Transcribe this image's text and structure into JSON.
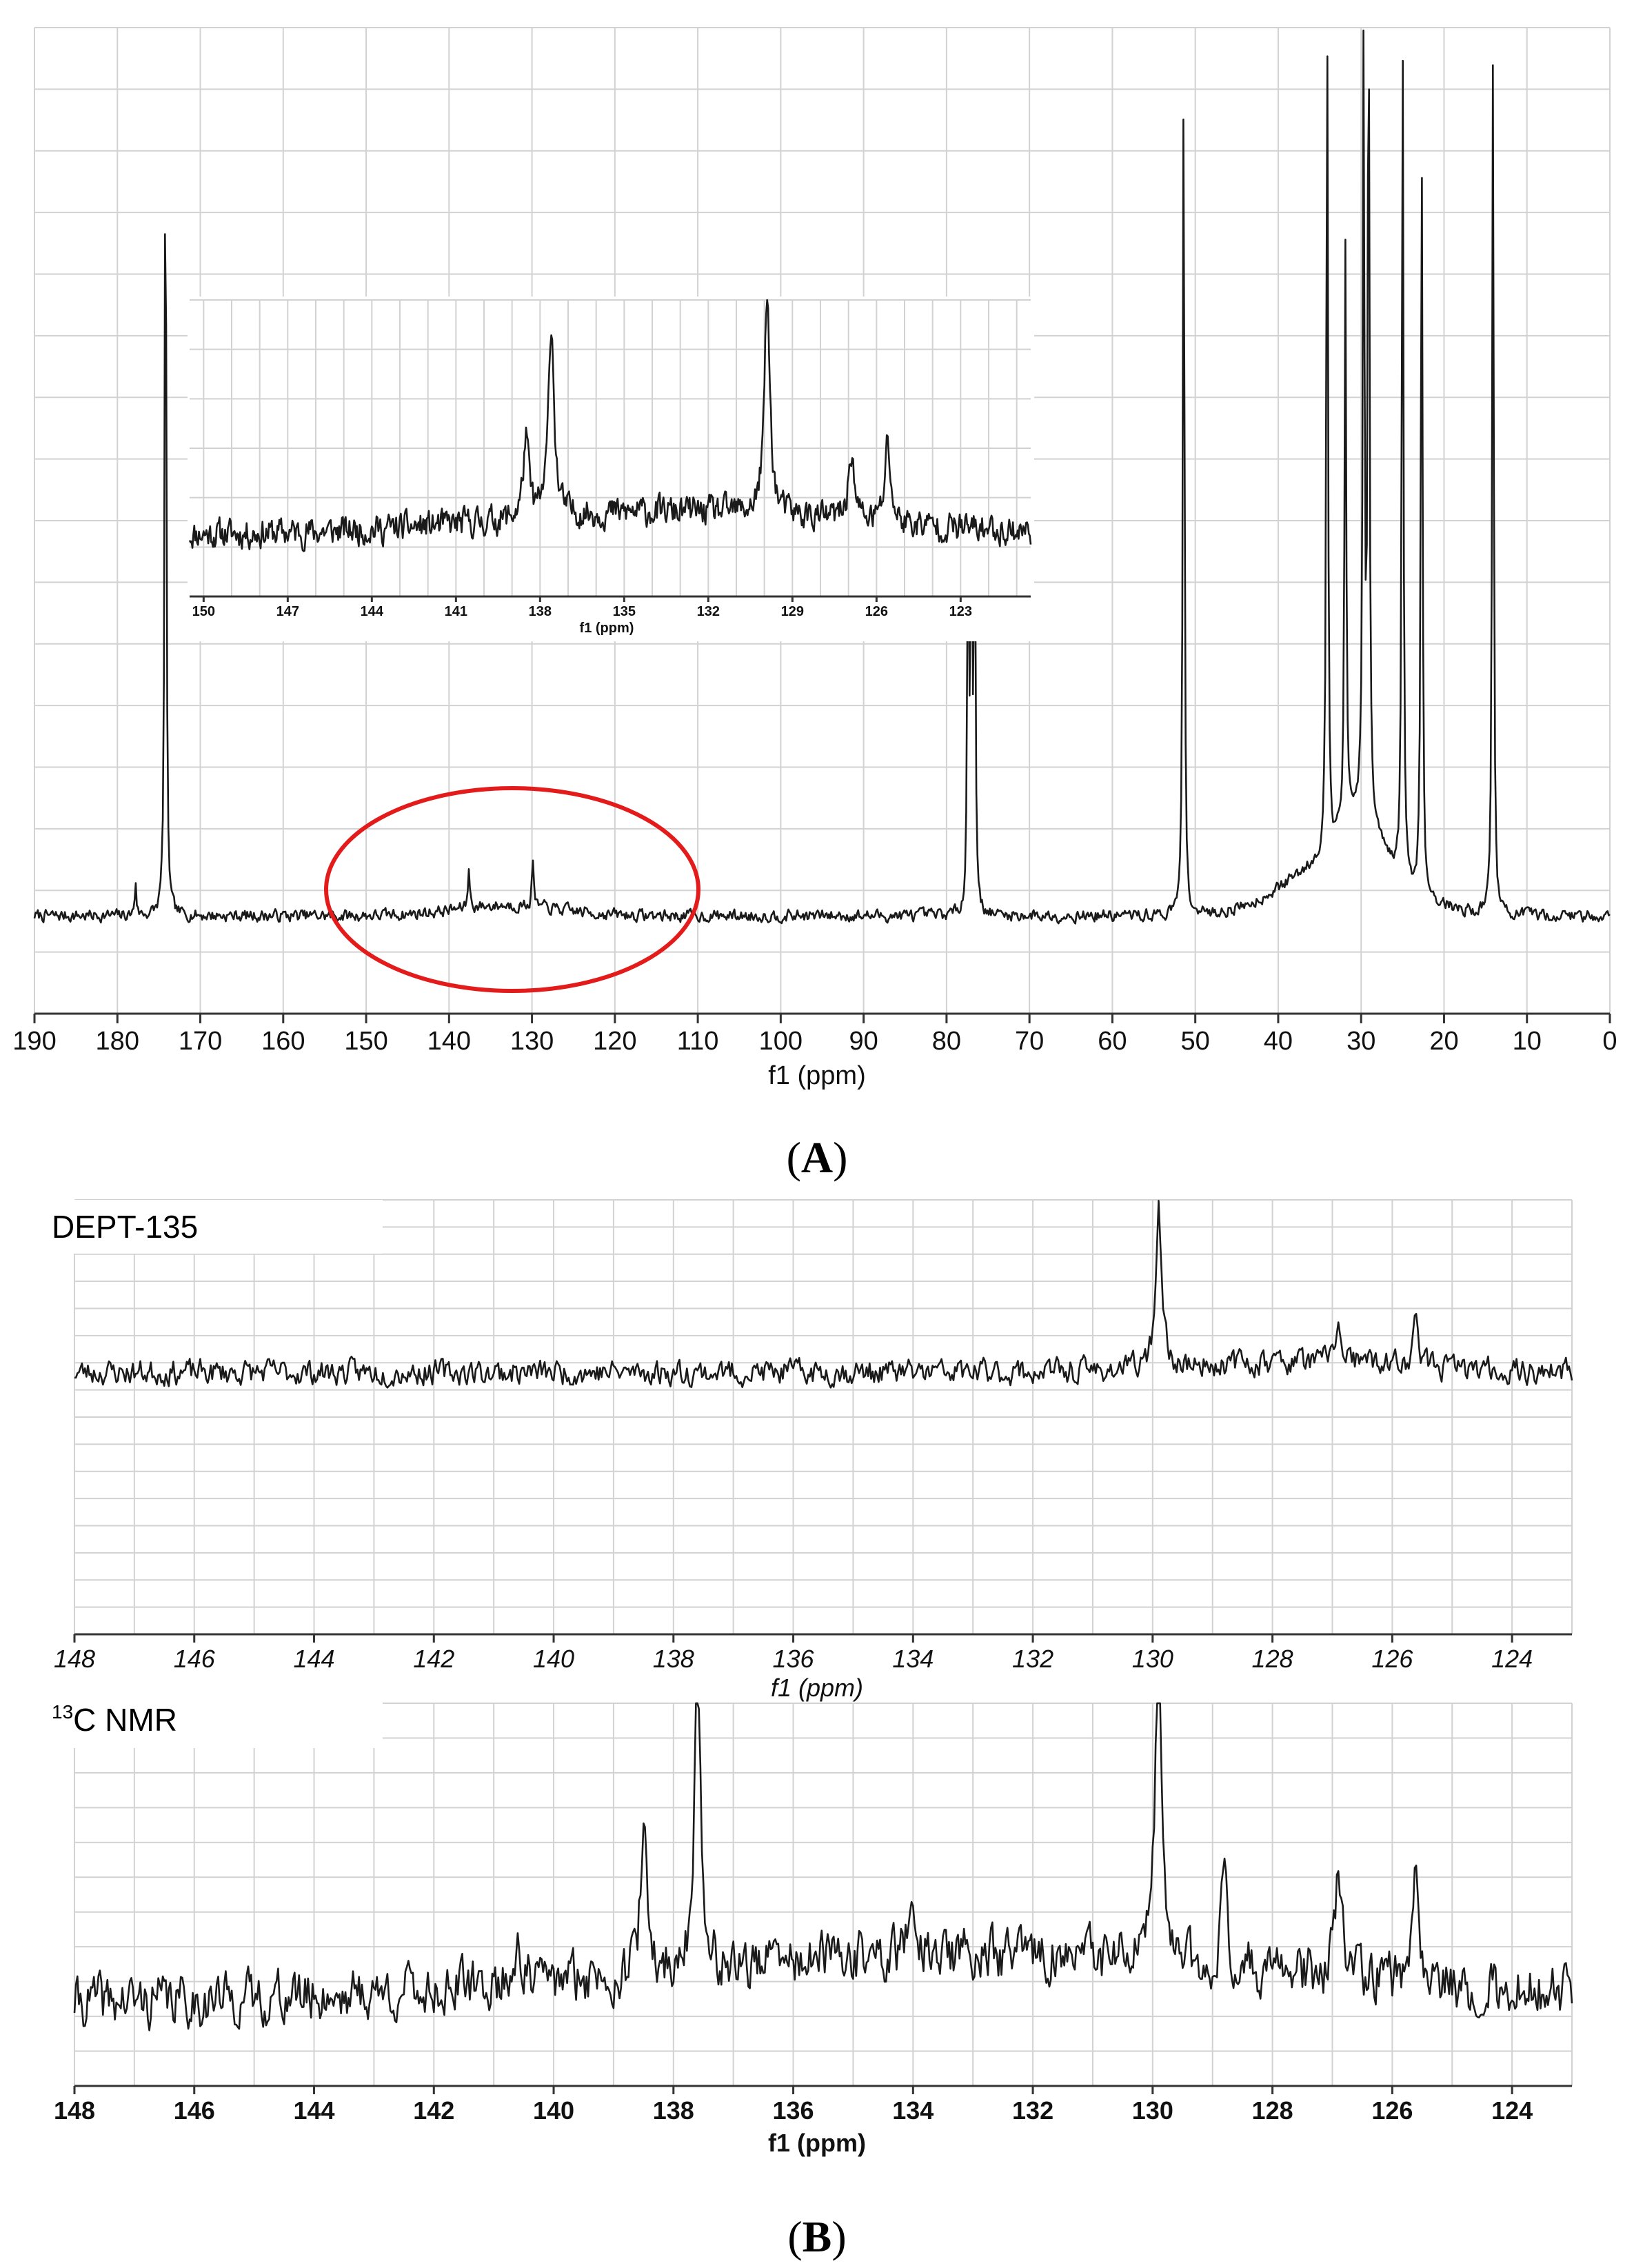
{
  "panels": {
    "a": {
      "label": "A"
    },
    "b": {
      "label": "B"
    }
  },
  "colors": {
    "trace": "#1a1a1a",
    "grid": "#d2d2d2",
    "highlight": "#e31b1b"
  },
  "chart_data": [
    {
      "id": "A-main",
      "type": "line",
      "title": "",
      "xlabel": "f1 (ppm)",
      "ylabel": "",
      "xlim": [
        190,
        0
      ],
      "x_reversed": true,
      "x_ticks": [
        190,
        180,
        170,
        160,
        150,
        140,
        130,
        120,
        110,
        100,
        90,
        80,
        70,
        60,
        50,
        40,
        30,
        20,
        10,
        0
      ],
      "x_tick_labels": [
        "190",
        "180",
        "170",
        "160",
        "150",
        "140",
        "130",
        "120",
        "110",
        "100",
        "90",
        "80",
        "70",
        "60",
        "50",
        "40",
        "30",
        "20",
        "10",
        "0"
      ],
      "grid": true,
      "peaks": [
        {
          "ppm": 177.8,
          "height": 0.04
        },
        {
          "ppm": 174.2,
          "height": 0.97
        },
        {
          "ppm": 137.6,
          "height": 0.05
        },
        {
          "ppm": 129.9,
          "height": 0.06
        },
        {
          "ppm": 77.4,
          "height": 0.45
        },
        {
          "ppm": 77.0,
          "height": 0.45
        },
        {
          "ppm": 76.6,
          "height": 0.45
        },
        {
          "ppm": 51.4,
          "height": 1.0
        },
        {
          "ppm": 34.1,
          "height": 1.0
        },
        {
          "ppm": 31.9,
          "height": 0.68
        },
        {
          "ppm": 29.7,
          "height": 0.9
        },
        {
          "ppm": 29.1,
          "height": 1.0
        },
        {
          "ppm": 25.0,
          "height": 1.0
        },
        {
          "ppm": 22.7,
          "height": 0.9
        },
        {
          "ppm": 14.1,
          "height": 1.0
        }
      ],
      "annotation": {
        "shape": "ellipse",
        "center_ppm": 132,
        "span_ppm": [
          153,
          110
        ]
      }
    },
    {
      "id": "A-inset",
      "type": "line",
      "xlabel": "f1 (ppm)",
      "xlim": [
        150.5,
        120.5
      ],
      "x_reversed": true,
      "x_ticks": [
        150,
        147,
        144,
        141,
        138,
        135,
        132,
        129,
        126,
        123
      ],
      "x_tick_labels": [
        "150",
        "147",
        "144",
        "141",
        "138",
        "135",
        "132",
        "129",
        "126",
        "123"
      ],
      "grid": true,
      "peaks": [
        {
          "ppm": 137.6,
          "height": 0.85
        },
        {
          "ppm": 129.9,
          "height": 0.95
        },
        {
          "ppm": 138.5,
          "height": 0.35
        },
        {
          "ppm": 126.9,
          "height": 0.3
        },
        {
          "ppm": 125.6,
          "height": 0.35
        }
      ]
    },
    {
      "id": "B-top",
      "type": "line",
      "series_label": "DEPT-135",
      "xlabel": "f1 (ppm)",
      "xlim": [
        148,
        123
      ],
      "x_reversed": true,
      "x_ticks": [
        148,
        146,
        144,
        142,
        140,
        138,
        136,
        134,
        132,
        130,
        128,
        126,
        124
      ],
      "x_tick_labels": [
        "148",
        "146",
        "144",
        "142",
        "140",
        "138",
        "136",
        "134",
        "132",
        "130",
        "128",
        "126",
        "124"
      ],
      "grid": true,
      "peaks": [
        {
          "ppm": 129.9,
          "height": 0.9
        },
        {
          "ppm": 126.9,
          "height": 0.22
        },
        {
          "ppm": 125.6,
          "height": 0.24
        }
      ]
    },
    {
      "id": "B-bottom",
      "type": "line",
      "series_label": "13C NMR",
      "series_label_sup": "13",
      "series_label_main": "C NMR",
      "xlabel": "f1 (ppm)",
      "xlim": [
        148,
        123
      ],
      "x_reversed": true,
      "x_ticks": [
        148,
        146,
        144,
        142,
        140,
        138,
        136,
        134,
        132,
        130,
        128,
        126,
        124
      ],
      "x_tick_labels": [
        "148",
        "146",
        "144",
        "142",
        "140",
        "138",
        "136",
        "134",
        "132",
        "130",
        "128",
        "126",
        "124"
      ],
      "grid": true,
      "peaks": [
        {
          "ppm": 137.6,
          "height": 0.9
        },
        {
          "ppm": 138.5,
          "height": 0.42
        },
        {
          "ppm": 129.9,
          "height": 0.95
        },
        {
          "ppm": 128.8,
          "height": 0.26
        },
        {
          "ppm": 134.0,
          "height": 0.2
        },
        {
          "ppm": 126.9,
          "height": 0.32
        },
        {
          "ppm": 125.6,
          "height": 0.4
        },
        {
          "ppm": 140.6,
          "height": 0.14
        }
      ]
    }
  ]
}
